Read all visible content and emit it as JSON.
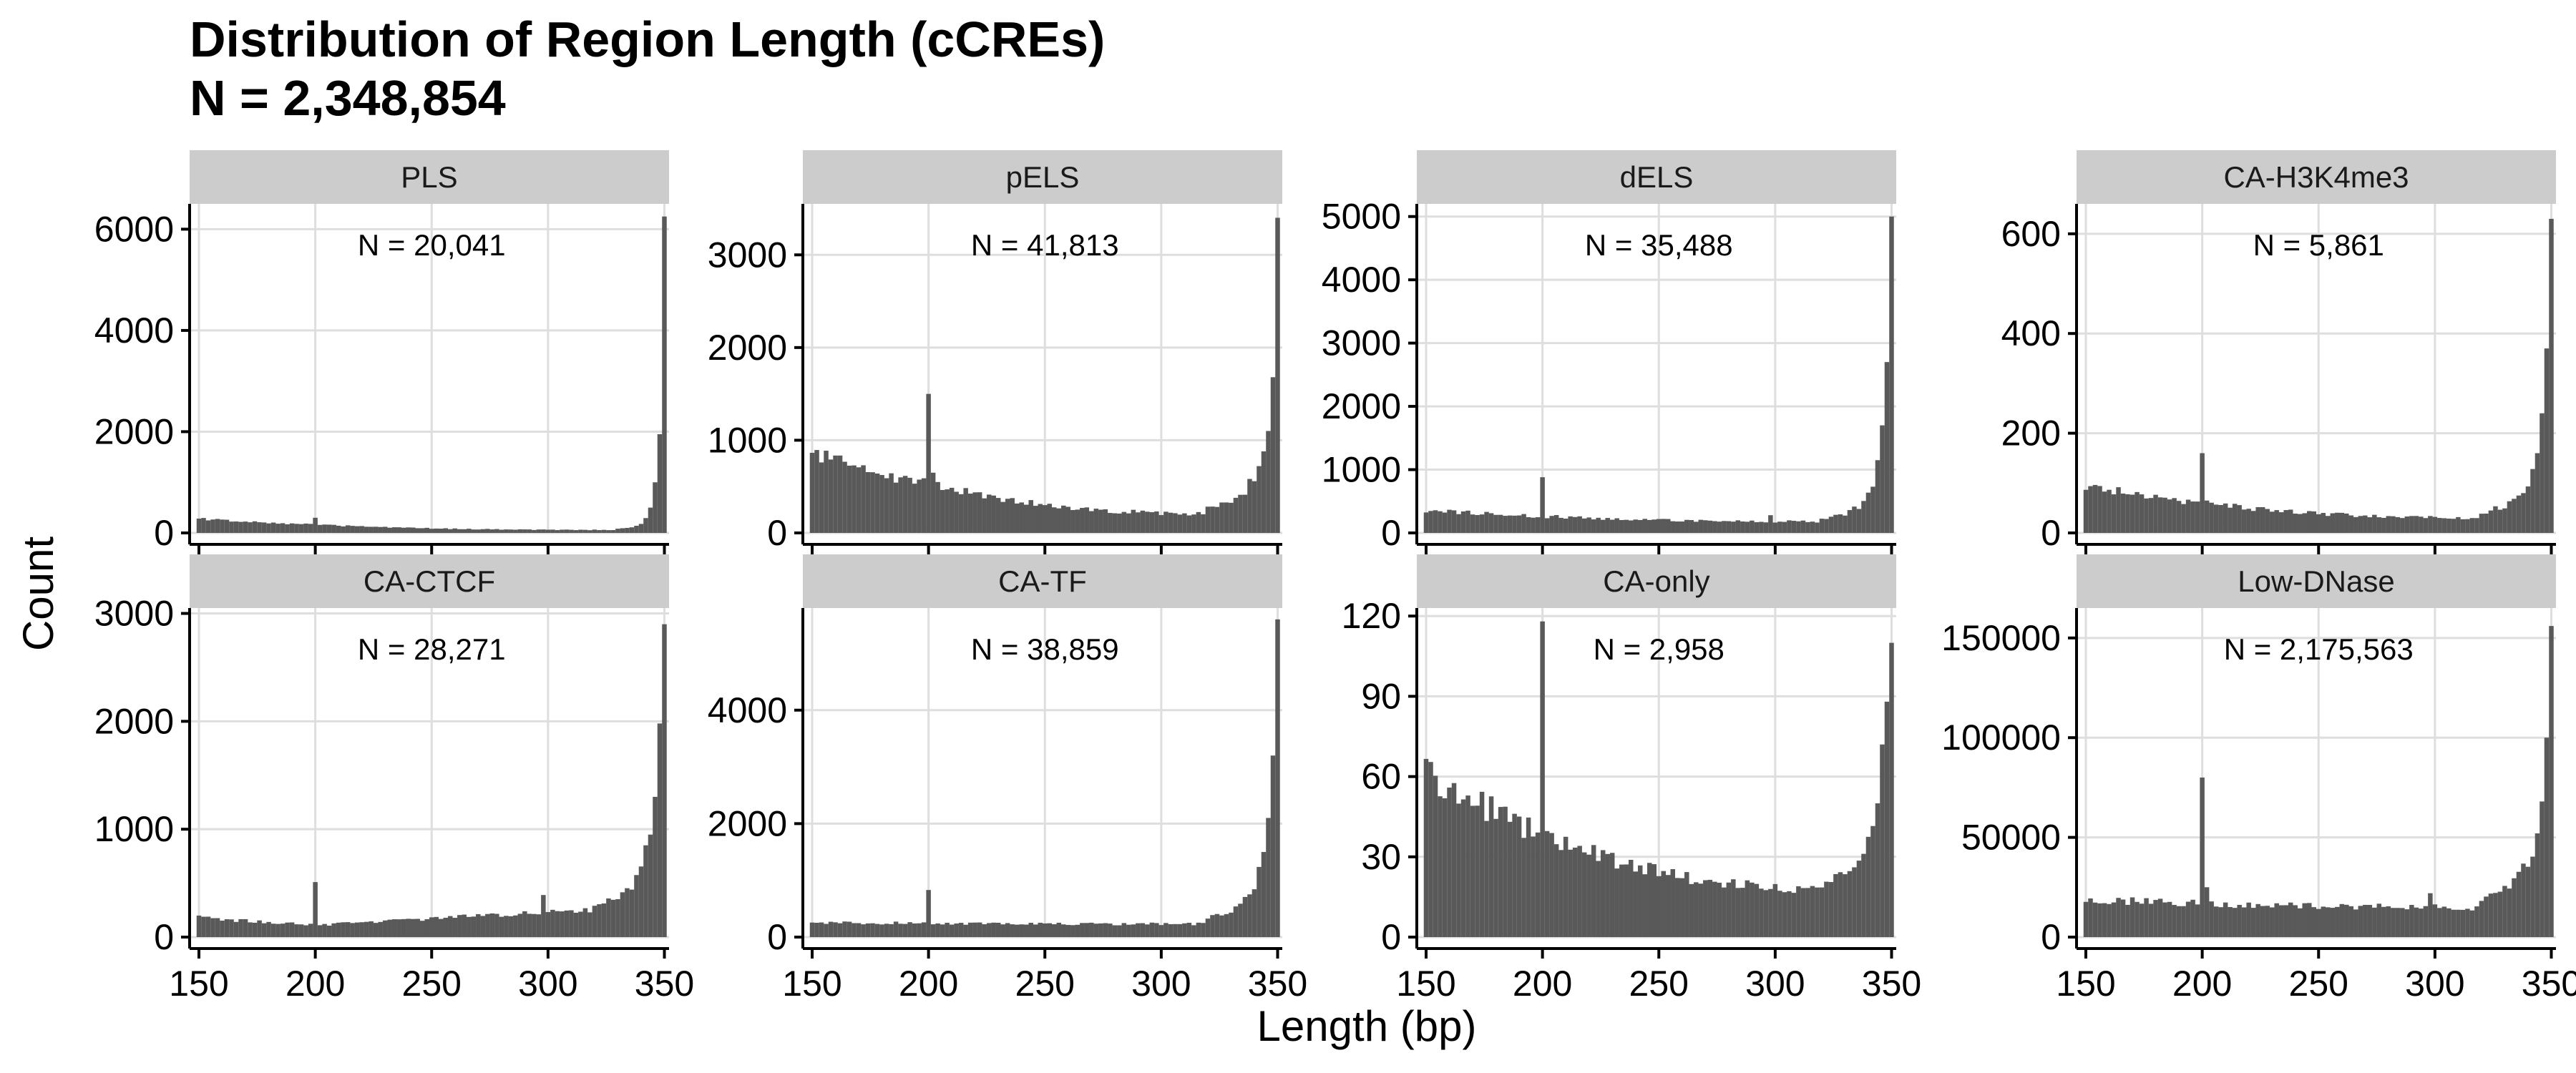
{
  "title": {
    "line1": "Distribution of Region Length (cCREs)",
    "line2": "N = 2,348,854"
  },
  "axis": {
    "xlabel": "Length (bp)",
    "ylabel": "Count"
  },
  "colors": {
    "bar": "#595959",
    "strip": "#cccccc",
    "grid": "#dedede",
    "axis": "#000000"
  },
  "chart_data": {
    "type": "bar",
    "facet_layout": "4 columns x 2 rows",
    "xlim": [
      146,
      352
    ],
    "xticks": [
      150,
      200,
      250,
      300,
      350
    ],
    "bin_width": 2,
    "panels": [
      {
        "name": "PLS",
        "n_label": "N = 20,041",
        "ylim": [
          0,
          6500
        ],
        "yticks": [
          0,
          2000,
          4000,
          6000
        ],
        "shape": {
          "start": 280,
          "end": 60,
          "spikes": [
            [
              200,
              300
            ]
          ],
          "peak": 6250,
          "rise": [
            350,
            6250,
            348,
            1950,
            346,
            1000,
            344,
            500,
            342,
            300,
            340,
            180,
            336,
            110,
            330,
            80
          ]
        }
      },
      {
        "name": "pELS",
        "n_label": "N = 41,813",
        "ylim": [
          0,
          3550
        ],
        "yticks": [
          0,
          1000,
          2000,
          3000
        ],
        "shape": {
          "start": 880,
          "end": 210,
          "spikes": [
            [
              200,
              1500
            ],
            [
              202,
              650
            ]
          ],
          "peak": 3400,
          "rise": [
            350,
            3400,
            348,
            1680,
            346,
            1100,
            344,
            880,
            342,
            720,
            340,
            600,
            336,
            450,
            330,
            340,
            320,
            260
          ]
        }
      },
      {
        "name": "dELS",
        "n_label": "N = 35,488",
        "ylim": [
          0,
          5200
        ],
        "yticks": [
          0,
          1000,
          2000,
          3000,
          4000,
          5000
        ],
        "shape": {
          "start": 360,
          "end": 180,
          "spikes": [
            [
              200,
              880
            ],
            [
              298,
              280
            ]
          ],
          "peak": 5000,
          "rise": [
            350,
            5000,
            348,
            2700,
            346,
            1700,
            344,
            1150,
            342,
            800,
            340,
            600,
            336,
            420,
            330,
            300,
            320,
            220
          ]
        }
      },
      {
        "name": "CA-H3K4me3",
        "n_label": "N = 5,861",
        "ylim": [
          0,
          660
        ],
        "yticks": [
          0,
          200,
          400,
          600
        ],
        "shape": {
          "start": 95,
          "end": 30,
          "spikes": [
            [
              200,
              160
            ],
            [
              202,
              65
            ]
          ],
          "peak": 630,
          "rise": [
            350,
            630,
            348,
            370,
            346,
            240,
            344,
            160,
            342,
            120,
            340,
            90,
            336,
            70,
            330,
            55,
            320,
            40
          ]
        }
      },
      {
        "name": "CA-CTCF",
        "n_label": "N = 28,271",
        "ylim": [
          0,
          3050
        ],
        "yticks": [
          0,
          1000,
          2000,
          3000
        ],
        "shape": {
          "start": 180,
          "end": 260,
          "mid": 110,
          "spikes": [
            [
              200,
              510
            ],
            [
              298,
              390
            ]
          ],
          "peak": 2900,
          "rise": [
            350,
            2900,
            348,
            1980,
            346,
            1300,
            344,
            950,
            342,
            780,
            340,
            620,
            336,
            480,
            330,
            360,
            320,
            300
          ]
        }
      },
      {
        "name": "CA-TF",
        "n_label": "N = 38,859",
        "ylim": [
          0,
          5800
        ],
        "yticks": [
          0,
          2000,
          4000
        ],
        "shape": {
          "start": 260,
          "end": 230,
          "spikes": [
            [
              200,
              830
            ]
          ],
          "peak": 5600,
          "rise": [
            350,
            5600,
            348,
            3200,
            346,
            2100,
            344,
            1500,
            342,
            1150,
            340,
            920,
            336,
            700,
            330,
            480,
            320,
            330
          ]
        }
      },
      {
        "name": "CA-only",
        "n_label": "N = 2,958",
        "ylim": [
          0,
          123
        ],
        "yticks": [
          0,
          30,
          60,
          90,
          120
        ],
        "shape": {
          "start": 62,
          "end": 18,
          "spikes": [
            [
              200,
              118
            ]
          ],
          "peak": 110,
          "rise": [
            350,
            110,
            348,
            88,
            346,
            72,
            344,
            50,
            342,
            42,
            340,
            34,
            336,
            30,
            330,
            24,
            320,
            18
          ]
        }
      },
      {
        "name": "Low-DNase",
        "n_label": "N = 2,175,563",
        "ylim": [
          0,
          165000
        ],
        "yticks": [
          0,
          50000,
          100000,
          150000
        ],
        "shape": {
          "start": 19000,
          "end": 15000,
          "spikes": [
            [
              200,
              80000
            ],
            [
              202,
              25000
            ],
            [
              298,
              22000
            ]
          ],
          "peak": 156000,
          "rise": [
            350,
            156000,
            348,
            100000,
            346,
            68000,
            344,
            52000,
            342,
            44000,
            340,
            38000,
            336,
            31000,
            330,
            25000,
            320,
            19000
          ]
        }
      }
    ]
  }
}
